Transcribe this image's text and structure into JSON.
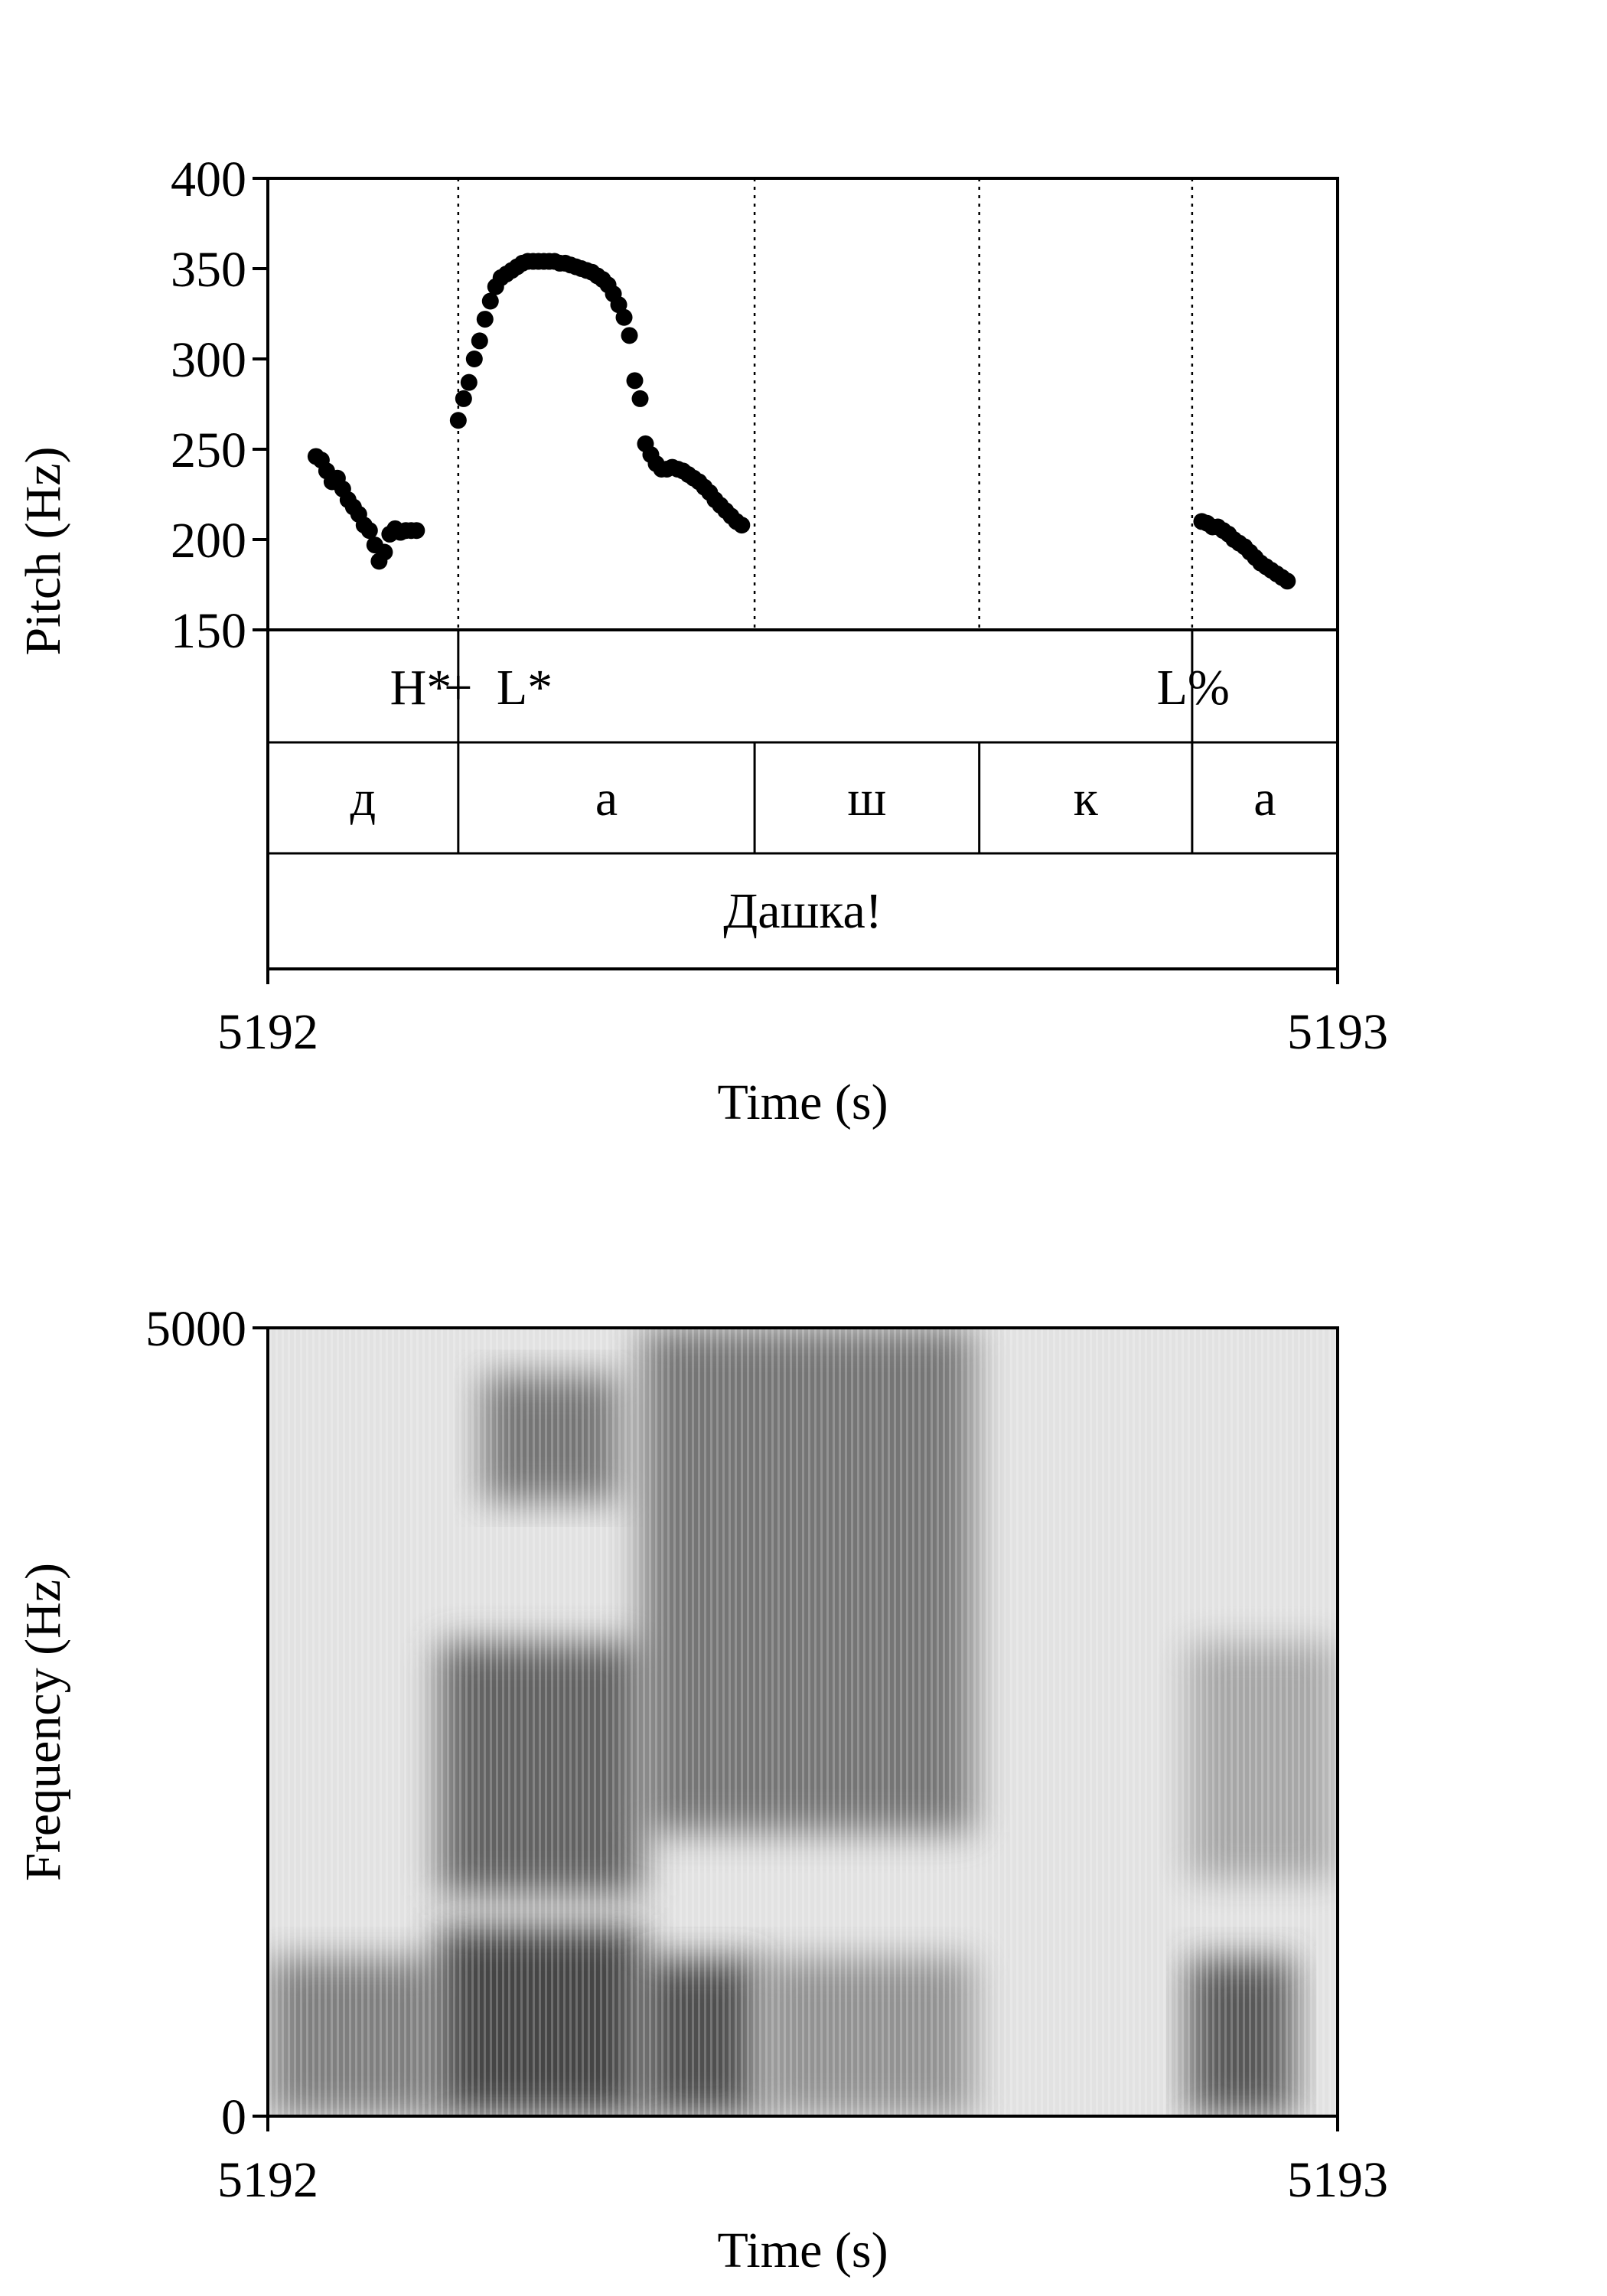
{
  "chart_data": [
    {
      "type": "scatter",
      "title": "",
      "xlabel": "Time (s)",
      "ylabel": "Pitch (Hz)",
      "xlim": [
        5192,
        5193
      ],
      "ylim": [
        150,
        400
      ],
      "x_ticks": [
        "5192",
        "5193"
      ],
      "y_ticks": [
        "400",
        "350",
        "300",
        "250",
        "200",
        "150"
      ],
      "grid": false,
      "series": [
        {
          "points": [
            [
              5192.045,
              246
            ],
            [
              5192.05,
              244
            ],
            [
              5192.055,
              238
            ],
            [
              5192.06,
              232
            ],
            [
              5192.065,
              234
            ],
            [
              5192.07,
              228
            ],
            [
              5192.075,
              222
            ],
            [
              5192.08,
              218
            ],
            [
              5192.085,
              214
            ],
            [
              5192.09,
              208
            ],
            [
              5192.095,
              205
            ],
            [
              5192.1,
              197
            ],
            [
              5192.104,
              188
            ],
            [
              5192.109,
              193
            ],
            [
              5192.114,
              203
            ],
            [
              5192.119,
              206
            ],
            [
              5192.124,
              204
            ],
            [
              5192.129,
              205
            ],
            [
              5192.134,
              205
            ],
            [
              5192.139,
              205
            ],
            [
              5192.178,
              266
            ],
            [
              5192.183,
              278
            ],
            [
              5192.188,
              287
            ],
            [
              5192.193,
              300
            ],
            [
              5192.198,
              310
            ],
            [
              5192.203,
              322
            ],
            [
              5192.208,
              332
            ],
            [
              5192.213,
              340
            ],
            [
              5192.218,
              345
            ],
            [
              5192.223,
              347
            ],
            [
              5192.228,
              349
            ],
            [
              5192.233,
              351
            ],
            [
              5192.238,
              353
            ],
            [
              5192.243,
              354
            ],
            [
              5192.248,
              354
            ],
            [
              5192.253,
              354
            ],
            [
              5192.258,
              354
            ],
            [
              5192.263,
              354
            ],
            [
              5192.268,
              354
            ],
            [
              5192.273,
              353
            ],
            [
              5192.278,
              353
            ],
            [
              5192.283,
              352
            ],
            [
              5192.288,
              351
            ],
            [
              5192.293,
              350
            ],
            [
              5192.298,
              349
            ],
            [
              5192.303,
              348
            ],
            [
              5192.308,
              346
            ],
            [
              5192.313,
              344
            ],
            [
              5192.318,
              341
            ],
            [
              5192.323,
              336
            ],
            [
              5192.328,
              330
            ],
            [
              5192.333,
              323
            ],
            [
              5192.338,
              313
            ],
            [
              5192.343,
              288
            ],
            [
              5192.348,
              278
            ],
            [
              5192.353,
              253
            ],
            [
              5192.358,
              247
            ],
            [
              5192.363,
              242
            ],
            [
              5192.368,
              239
            ],
            [
              5192.373,
              239
            ],
            [
              5192.378,
              240
            ],
            [
              5192.383,
              239
            ],
            [
              5192.388,
              238
            ],
            [
              5192.393,
              236
            ],
            [
              5192.398,
              234
            ],
            [
              5192.403,
              232
            ],
            [
              5192.408,
              229
            ],
            [
              5192.413,
              226
            ],
            [
              5192.418,
              222
            ],
            [
              5192.423,
              219
            ],
            [
              5192.428,
              216
            ],
            [
              5192.433,
              213
            ],
            [
              5192.438,
              210
            ],
            [
              5192.443,
              208
            ],
            [
              5192.873,
              210
            ],
            [
              5192.878,
              209
            ],
            [
              5192.883,
              207
            ],
            [
              5192.888,
              207
            ],
            [
              5192.893,
              205
            ],
            [
              5192.898,
              203
            ],
            [
              5192.903,
              200
            ],
            [
              5192.908,
              198
            ],
            [
              5192.913,
              196
            ],
            [
              5192.918,
              193
            ],
            [
              5192.923,
              190
            ],
            [
              5192.928,
              187
            ],
            [
              5192.933,
              185
            ],
            [
              5192.938,
              183
            ],
            [
              5192.943,
              181
            ],
            [
              5192.948,
              179
            ],
            [
              5192.953,
              177
            ]
          ]
        }
      ],
      "boundaries": [
        5192.178,
        5192.455,
        5192.665,
        5192.864
      ]
    },
    {
      "type": "heatmap",
      "title": "",
      "xlabel": "Time (s)",
      "ylabel": "Frequency (Hz)",
      "xlim": [
        5192,
        5193
      ],
      "ylim": [
        0,
        5000
      ],
      "x_ticks": [
        "5192",
        "5193"
      ],
      "y_ticks": [
        "5000",
        "0"
      ],
      "colormap": "grayscale",
      "energy_regions": [
        {
          "t": [
            5192.0,
            5192.16
          ],
          "f": [
            0,
            1000
          ],
          "intensity": 0.55
        },
        {
          "t": [
            5192.16,
            5192.35
          ],
          "f": [
            0,
            1200
          ],
          "intensity": 0.85
        },
        {
          "t": [
            5192.16,
            5192.35
          ],
          "f": [
            1400,
            3000
          ],
          "intensity": 0.7
        },
        {
          "t": [
            5192.2,
            5192.33
          ],
          "f": [
            3900,
            4700
          ],
          "intensity": 0.6
        },
        {
          "t": [
            5192.35,
            5192.46
          ],
          "f": [
            0,
            1000
          ],
          "intensity": 0.8
        },
        {
          "t": [
            5192.35,
            5192.66
          ],
          "f": [
            1800,
            5000
          ],
          "intensity": 0.6
        },
        {
          "t": [
            5192.46,
            5192.66
          ],
          "f": [
            0,
            1000
          ],
          "intensity": 0.45
        },
        {
          "t": [
            5192.86,
            5192.96
          ],
          "f": [
            0,
            1000
          ],
          "intensity": 0.75
        },
        {
          "t": [
            5192.86,
            5193.0
          ],
          "f": [
            1500,
            3000
          ],
          "intensity": 0.35
        }
      ]
    }
  ],
  "tiers": {
    "tones": [
      {
        "label": "H*",
        "t": 5192.143
      },
      {
        "label": "+",
        "t": 5192.178
      },
      {
        "label": "L*",
        "t": 5192.24
      },
      {
        "label": "L%",
        "t": 5192.865
      }
    ],
    "segments": [
      {
        "label": "д",
        "start": 5192.0,
        "end": 5192.178
      },
      {
        "label": "а",
        "start": 5192.178,
        "end": 5192.455
      },
      {
        "label": "ш",
        "start": 5192.455,
        "end": 5192.665
      },
      {
        "label": "к",
        "start": 5192.665,
        "end": 5192.864
      },
      {
        "label": "а",
        "start": 5192.864,
        "end": 5193.0
      }
    ],
    "word": {
      "label": "Дашка!",
      "start": 5192.0,
      "end": 5193.0
    }
  }
}
